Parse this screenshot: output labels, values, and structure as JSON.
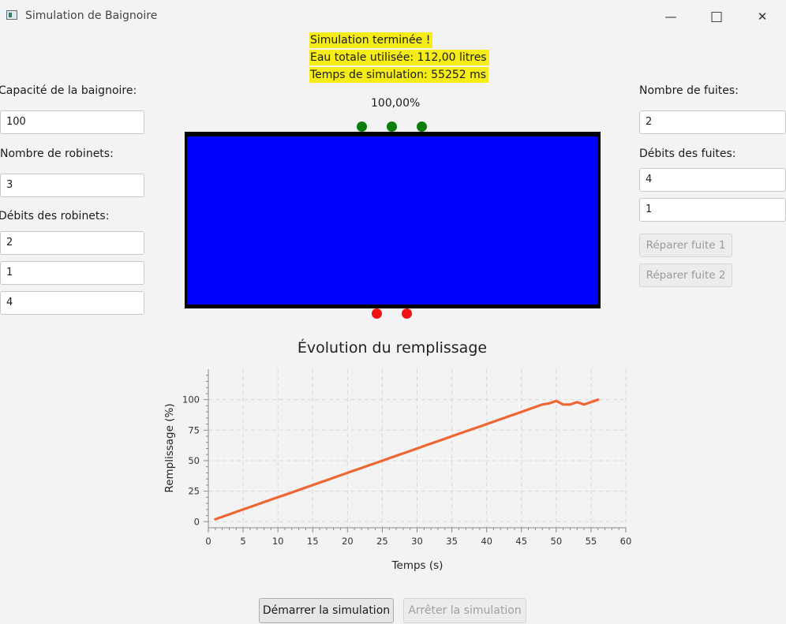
{
  "window": {
    "title": "Simulation de Baignoire",
    "minimize_glyph": "—",
    "maximize_glyph": "□",
    "close_glyph": "✕"
  },
  "status": {
    "finished": "Simulation terminée !",
    "total_water": "Eau totale utilisée: 112,00 litres",
    "sim_time": "Temps de simulation: 55252 ms",
    "highlight_color": "#f5ec18"
  },
  "left_panel": {
    "capacity_label": "Capacité de la baignoire:",
    "capacity_value": "100",
    "taps_count_label": "Nombre de robinets:",
    "taps_count_value": "3",
    "tap_rates_label": "Débits des robinets:",
    "tap_rates": [
      "2",
      "1",
      "4"
    ]
  },
  "right_panel": {
    "leaks_count_label": "Nombre de fuites:",
    "leaks_count_value": "2",
    "leak_rates_label": "Débits des fuites:",
    "leak_rates": [
      "4",
      "1"
    ],
    "repair_buttons": [
      "Réparer fuite 1",
      "Réparer fuite 2"
    ]
  },
  "tub": {
    "fill_percent_text": "100,00%",
    "fill_fraction": 1.0,
    "water_color": "#0000fe",
    "tap_count": 3,
    "tap_color": "#0b7d0b",
    "leak_count": 2,
    "leak_color": "#f01313"
  },
  "chart_data": {
    "type": "line",
    "title": "Évolution du remplissage",
    "xlabel": "Temps (s)",
    "ylabel": "Remplissage (%)",
    "xlim": [
      0,
      60
    ],
    "ylim": [
      -5,
      125
    ],
    "xticks": [
      0,
      5,
      10,
      15,
      20,
      25,
      30,
      35,
      40,
      45,
      50,
      55,
      60
    ],
    "yticks": [
      0,
      25,
      50,
      75,
      100
    ],
    "grid": true,
    "line_color": "#ee6633",
    "series": [
      {
        "x": [
          1,
          2,
          3,
          4,
          5,
          6,
          7,
          8,
          9,
          10,
          11,
          12,
          13,
          14,
          15,
          16,
          17,
          18,
          19,
          20,
          21,
          22,
          23,
          24,
          25,
          26,
          27,
          28,
          29,
          30,
          31,
          32,
          33,
          34,
          35,
          36,
          37,
          38,
          39,
          40,
          41,
          42,
          43,
          44,
          45,
          46,
          47,
          48,
          49,
          50,
          51,
          52,
          53,
          54,
          55,
          56
        ],
        "y": [
          2,
          4,
          6,
          8,
          10,
          12,
          14,
          16,
          18,
          20,
          22,
          24,
          26,
          28,
          30,
          32,
          34,
          36,
          38,
          40,
          42,
          44,
          46,
          48,
          50,
          52,
          54,
          56,
          58,
          60,
          62,
          64,
          66,
          68,
          70,
          72,
          74,
          76,
          78,
          80,
          82,
          84,
          86,
          88,
          90,
          92,
          94,
          96,
          97,
          99,
          96,
          96,
          98,
          96,
          98,
          100
        ]
      }
    ]
  },
  "controls": {
    "start_label": "Démarrer la simulation",
    "stop_label": "Arrêter la simulation"
  }
}
